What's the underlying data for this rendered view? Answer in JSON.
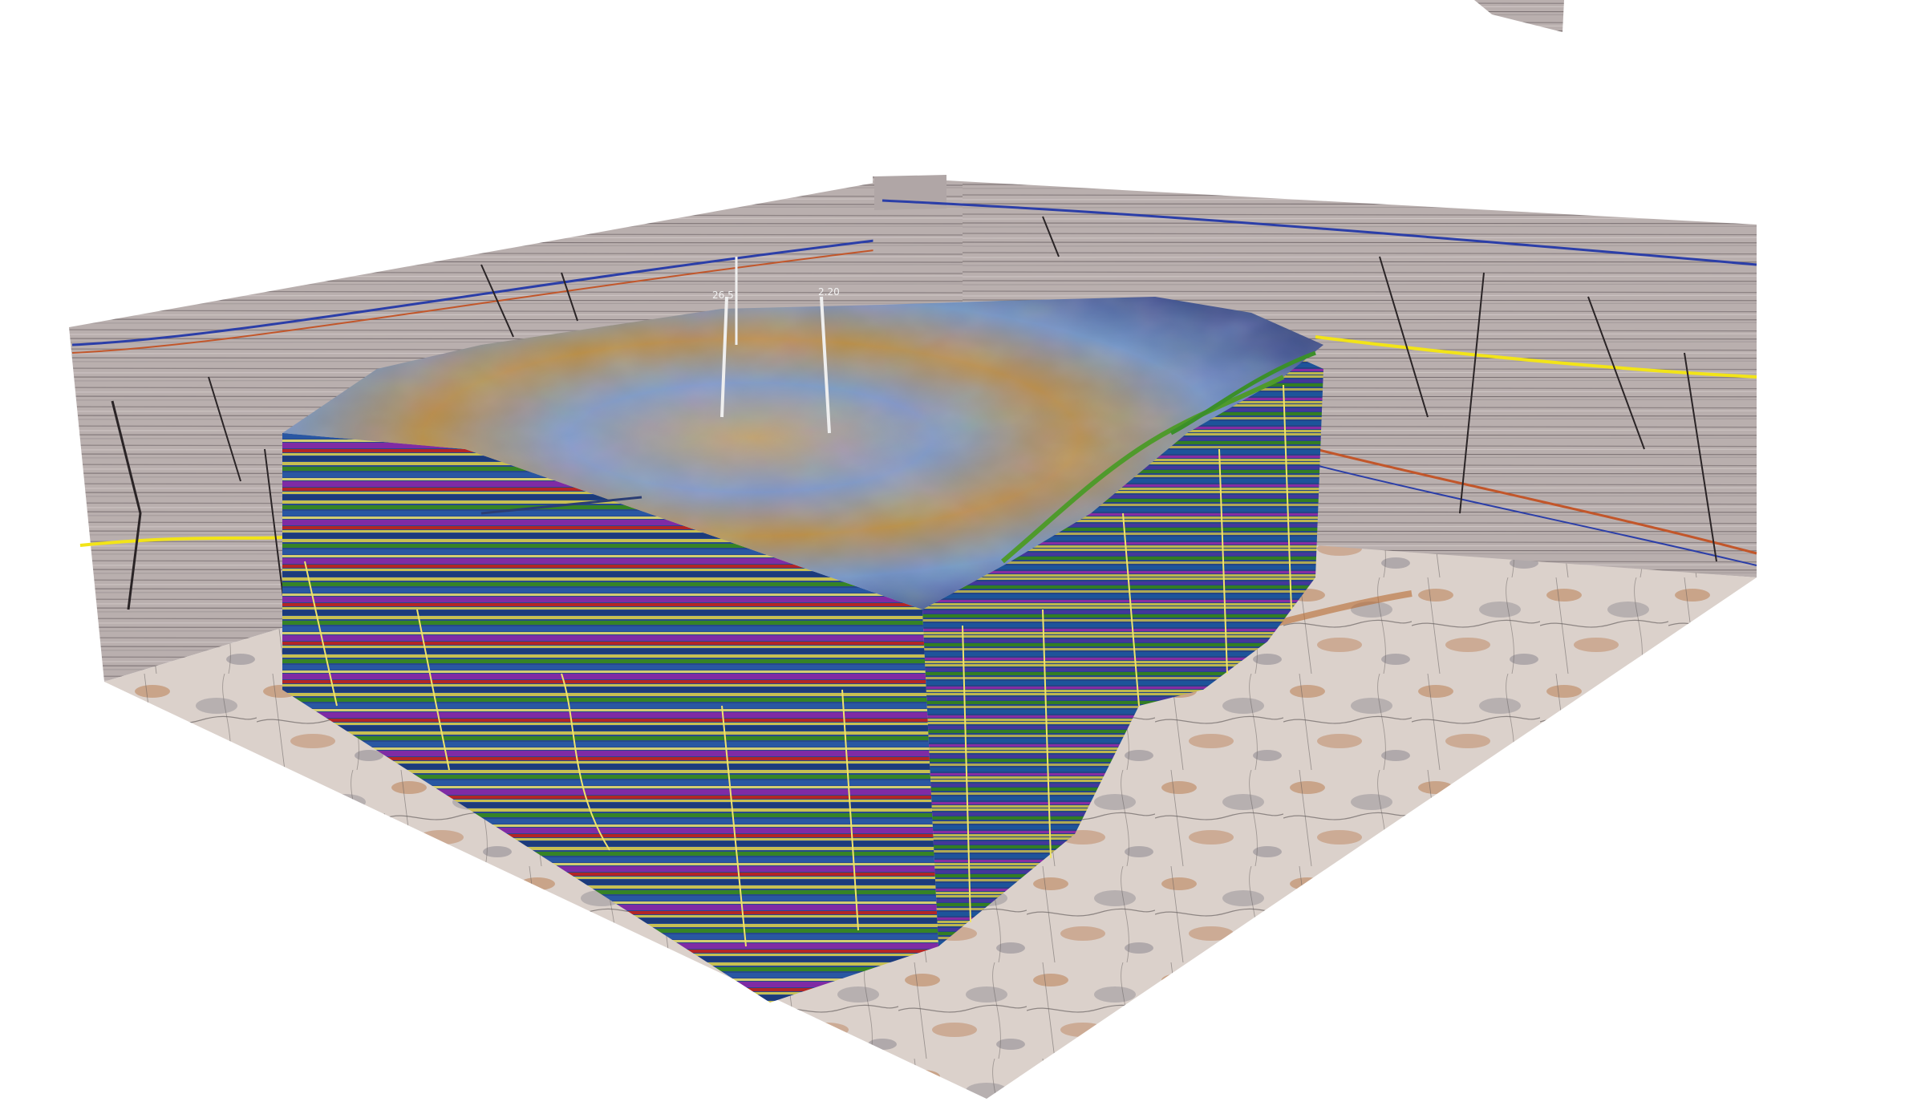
{
  "scene": {
    "kind": "3d-seismic-volume-render",
    "background_color": "#ffffff",
    "colors": {
      "section_base": "#b8aeae",
      "section_dark_lines": "#4a4446",
      "horizon_yellow": "#f2e418",
      "horizon_blue": "#2b3ea8",
      "horizon_orange": "#c2562a",
      "floor_base": "#d9cdc6",
      "floor_orange": "#b86a32",
      "floor_gray": "#7e7a84",
      "volume_blue": "#2a4f9a",
      "volume_purple": "#8a2fb2",
      "volume_red": "#c22a2a",
      "volume_green": "#3b8f2a",
      "volume_yellow": "#d8d05a",
      "top_surface_blue": "#6f8fc2",
      "top_surface_gold": "#b88c45",
      "well_stick": "#efefef"
    },
    "wells": [
      {
        "label": "26.5"
      },
      {
        "label": "2.20"
      }
    ]
  }
}
